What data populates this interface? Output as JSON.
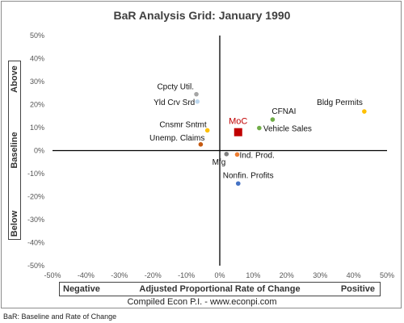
{
  "chart_data": {
    "type": "scatter",
    "title": "BaR Analysis Grid: January 1990",
    "xlabel": "Adjusted Proportional Rate of Change",
    "ylabel": "Baseline",
    "x_negative_label": "Negative",
    "x_positive_label": "Positive",
    "y_above_label": "Above",
    "y_below_label": "Below",
    "xlim": [
      -0.5,
      0.5
    ],
    "ylim": [
      -0.5,
      0.5
    ],
    "x_ticks": [
      "-50%",
      "-40%",
      "-30%",
      "-20%",
      "-10%",
      "0%",
      "10%",
      "20%",
      "30%",
      "40%",
      "50%"
    ],
    "y_ticks": [
      "50%",
      "40%",
      "30%",
      "20%",
      "10%",
      "0%",
      "-10%",
      "-20%",
      "-30%",
      "-40%",
      "-50%"
    ],
    "grid": false,
    "points": [
      {
        "label": "Cpcty Util.",
        "x": -0.07,
        "y": 0.245,
        "color": "#a5a5a5"
      },
      {
        "label": "Yld Crv Srd",
        "x": -0.067,
        "y": 0.213,
        "color": "#bdd7ee"
      },
      {
        "label": "CFNAI",
        "x": 0.158,
        "y": 0.135,
        "color": "#70ad47"
      },
      {
        "label": "Bldg Permits",
        "x": 0.432,
        "y": 0.17,
        "color": "#ffc000"
      },
      {
        "label": "MoC",
        "x": 0.055,
        "y": 0.08,
        "color": "#c00000"
      },
      {
        "label": "Vehicle Sales",
        "x": 0.118,
        "y": 0.098,
        "color": "#70ad47"
      },
      {
        "label": "Cnsmr Sntmt",
        "x": -0.037,
        "y": 0.088,
        "color": "#ffc000"
      },
      {
        "label": "Unemp. Claims",
        "x": -0.057,
        "y": 0.027,
        "color": "#c55a11"
      },
      {
        "label": "Mfg",
        "x": 0.02,
        "y": -0.015,
        "color": "#7f7f7f"
      },
      {
        "label": "Ind. Prod.",
        "x": 0.052,
        "y": -0.017,
        "color": "#ed7d31"
      },
      {
        "label": "Nonfin. Profits",
        "x": 0.055,
        "y": -0.143,
        "color": "#4472c4"
      }
    ]
  },
  "credit": "Compiled Econ P.I. - www.econpi.com",
  "footnote": "BaR: Baseline and Rate of Change"
}
